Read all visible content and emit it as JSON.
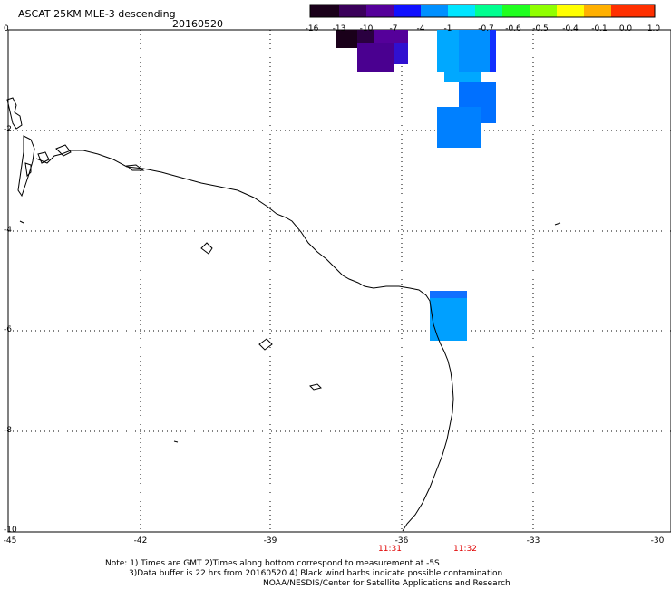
{
  "header": {
    "title": "ASCAT 25KM MLE-3 descending",
    "date": "20160520"
  },
  "colorbar": {
    "labels": [
      "-16",
      "-13",
      "-10",
      "-7",
      "-4",
      "-1",
      "-0.7",
      "-0.6",
      "-0.5",
      "-0.4",
      "-0.1",
      "0.0",
      "1.0"
    ]
  },
  "axes": {
    "lat_labels": [
      "0",
      "-2",
      "-4",
      "-6",
      "-8",
      "-10"
    ],
    "lon_labels": [
      "-45",
      "-42",
      "-39",
      "-36",
      "-33",
      "-30"
    ]
  },
  "times": [
    "11:31",
    "11:32"
  ],
  "notes": {
    "line1": "Note: 1) Times are GMT 2)Times along bottom correspond to measurement at -5S",
    "line2": "3)Data buffer is 22 hrs from 20160520 4) Black wind barbs indicate possible contamination",
    "line3": "NOAA/NESDIS/Center for Satellite Applications and Research"
  }
}
